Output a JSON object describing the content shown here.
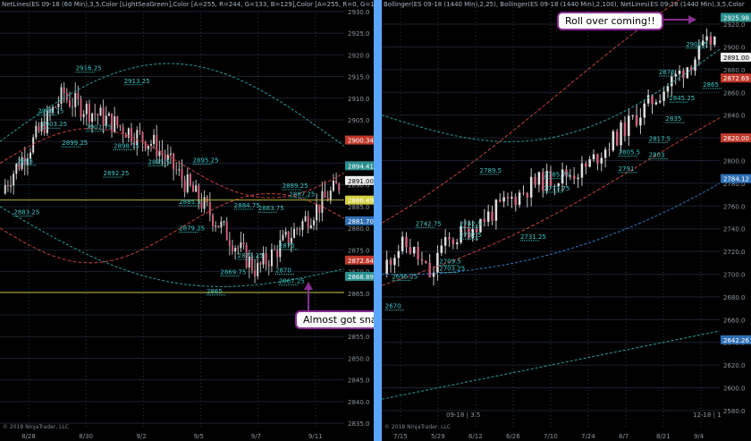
{
  "chart_data": [
    {
      "type": "candlestick",
      "header": "NetLines(ES 09-18 (60 Min),3,5,Color [LightSeaGreen],Color [A=255, R=244, G=133, B=129],Color [A=255, R=0, G=13",
      "x_labels": [
        "8/28",
        "8/30",
        "9/2",
        "9/5",
        "9/7",
        "9/11"
      ],
      "y_ticks": [
        2835,
        2840,
        2845,
        2850,
        2855,
        2860,
        2865,
        2870,
        2875,
        2880,
        2885,
        2890,
        2895,
        2900,
        2905,
        2910,
        2915,
        2920,
        2925,
        2930
      ],
      "ylim": [
        2834,
        2931
      ],
      "price_tags": [
        {
          "value": "2900.34",
          "color": "#c0392b"
        },
        {
          "value": "2894.41",
          "color": "#2a8f8f"
        },
        {
          "value": "2891.00",
          "color": "#eeeeee"
        },
        {
          "value": "2886.49",
          "color": "#d4d040"
        },
        {
          "value": "2881.70",
          "color": "#2e6fb5"
        },
        {
          "value": "2872.64",
          "color": "#c0392b"
        },
        {
          "value": "2868.89",
          "color": "#2a8f8f"
        }
      ],
      "level_labels": [
        {
          "text": "2916.25",
          "x": 0.22,
          "y": 2916.4
        },
        {
          "text": "2913.25",
          "x": 0.36,
          "y": 2913.5
        },
        {
          "text": "2906.75",
          "x": 0.11,
          "y": 2906.5
        },
        {
          "text": "2903.25",
          "x": 0.12,
          "y": 2903.5
        },
        {
          "text": "2902.75",
          "x": 0.25,
          "y": 2902.8
        },
        {
          "text": "2899.25",
          "x": 0.18,
          "y": 2899.2
        },
        {
          "text": "2898.75",
          "x": 0.33,
          "y": 2898.5
        },
        {
          "text": "2895",
          "x": 0.05,
          "y": 2895
        },
        {
          "text": "2892.25",
          "x": 0.3,
          "y": 2892.2
        },
        {
          "text": "2895.5",
          "x": 0.43,
          "y": 2894.8
        },
        {
          "text": "2895.25",
          "x": 0.56,
          "y": 2895.2
        },
        {
          "text": "2889.25",
          "x": 0.82,
          "y": 2889.3
        },
        {
          "text": "2887.25",
          "x": 0.84,
          "y": 2887.4
        },
        {
          "text": "2885.5",
          "x": 0.52,
          "y": 2885.6
        },
        {
          "text": "2884.75",
          "x": 0.68,
          "y": 2884.8
        },
        {
          "text": "2883.75",
          "x": 0.75,
          "y": 2884.1
        },
        {
          "text": "2883.25",
          "x": 0.04,
          "y": 2883.2
        },
        {
          "text": "2879.25",
          "x": 0.52,
          "y": 2879.5
        },
        {
          "text": "2875",
          "x": 0.81,
          "y": 2875.5
        },
        {
          "text": "2873.25",
          "x": 0.69,
          "y": 2873.2
        },
        {
          "text": "2870",
          "x": 0.8,
          "y": 2869.8
        },
        {
          "text": "2869.75",
          "x": 0.64,
          "y": 2869.4
        },
        {
          "text": "2867.25",
          "x": 0.81,
          "y": 2867.3
        },
        {
          "text": "2865",
          "x": 0.6,
          "y": 2865
        }
      ],
      "annotation": "Almost got snagged!",
      "copyright": "© 2018 NinjaTrader, LLC"
    },
    {
      "type": "candlestick",
      "header": "Bollinger(ES 09-18 (1440 Min),2,25), Bollinger(ES 09-18 (1440 Min),2,100), NetLines(ES 09-18 (1440 Min),3,5,Color",
      "x_labels": [
        "7/15",
        "5/29",
        "6/12",
        "6/26",
        "7/10",
        "7/24",
        "8/7",
        "8/21",
        "9/4"
      ],
      "y_ticks": [
        2580,
        2600,
        2620,
        2640,
        2660,
        2680,
        2700,
        2720,
        2740,
        2760,
        2780,
        2800,
        2820,
        2840,
        2860,
        2880,
        2900,
        2920
      ],
      "ylim": [
        2565,
        2935
      ],
      "price_tags": [
        {
          "value": "2925.98",
          "color": "#2a8f8f"
        },
        {
          "value": "2891.00",
          "color": "#eeeeee"
        },
        {
          "value": "2872.69",
          "color": "#c0392b"
        },
        {
          "value": "2820.00",
          "color": "#c0392b"
        },
        {
          "value": "2784.12",
          "color": "#2e6fb5"
        },
        {
          "value": "2642.26",
          "color": "#2e6fb5"
        }
      ],
      "level_labels": [
        {
          "text": "2900.5",
          "x": 0.9,
          "y": 2900.5
        },
        {
          "text": "2876",
          "x": 0.82,
          "y": 2876
        },
        {
          "text": "2865",
          "x": 0.95,
          "y": 2865
        },
        {
          "text": "2845.25",
          "x": 0.85,
          "y": 2853
        },
        {
          "text": "2835",
          "x": 0.84,
          "y": 2835
        },
        {
          "text": "2817.5",
          "x": 0.79,
          "y": 2817.5
        },
        {
          "text": "2805.5",
          "x": 0.7,
          "y": 2805.5
        },
        {
          "text": "2803",
          "x": 0.79,
          "y": 2803
        },
        {
          "text": "2791",
          "x": 0.7,
          "y": 2791
        },
        {
          "text": "2789.5",
          "x": 0.29,
          "y": 2789.5
        },
        {
          "text": "2785.75",
          "x": 0.48,
          "y": 2785.7
        },
        {
          "text": "2773.75",
          "x": 0.48,
          "y": 2773.7
        },
        {
          "text": "2742.75",
          "x": 0.1,
          "y": 2742.7
        },
        {
          "text": "2742.5",
          "x": 0.23,
          "y": 2742.5
        },
        {
          "text": "2732.5",
          "x": 0.23,
          "y": 2732.5
        },
        {
          "text": "2731.25",
          "x": 0.41,
          "y": 2731.2
        },
        {
          "text": "2709.5",
          "x": 0.17,
          "y": 2709.5
        },
        {
          "text": "2703.25",
          "x": 0.17,
          "y": 2703.2
        },
        {
          "text": "2696.25",
          "x": 0.03,
          "y": 2696.2
        },
        {
          "text": "2670",
          "x": 0.01,
          "y": 2670
        }
      ],
      "annotation": "Roll over coming!!",
      "copyright": "© 2018 NinjaTrader, LLC",
      "footer_label": "09-18 | 3.5",
      "footer_right": "12-18 | 1"
    }
  ]
}
